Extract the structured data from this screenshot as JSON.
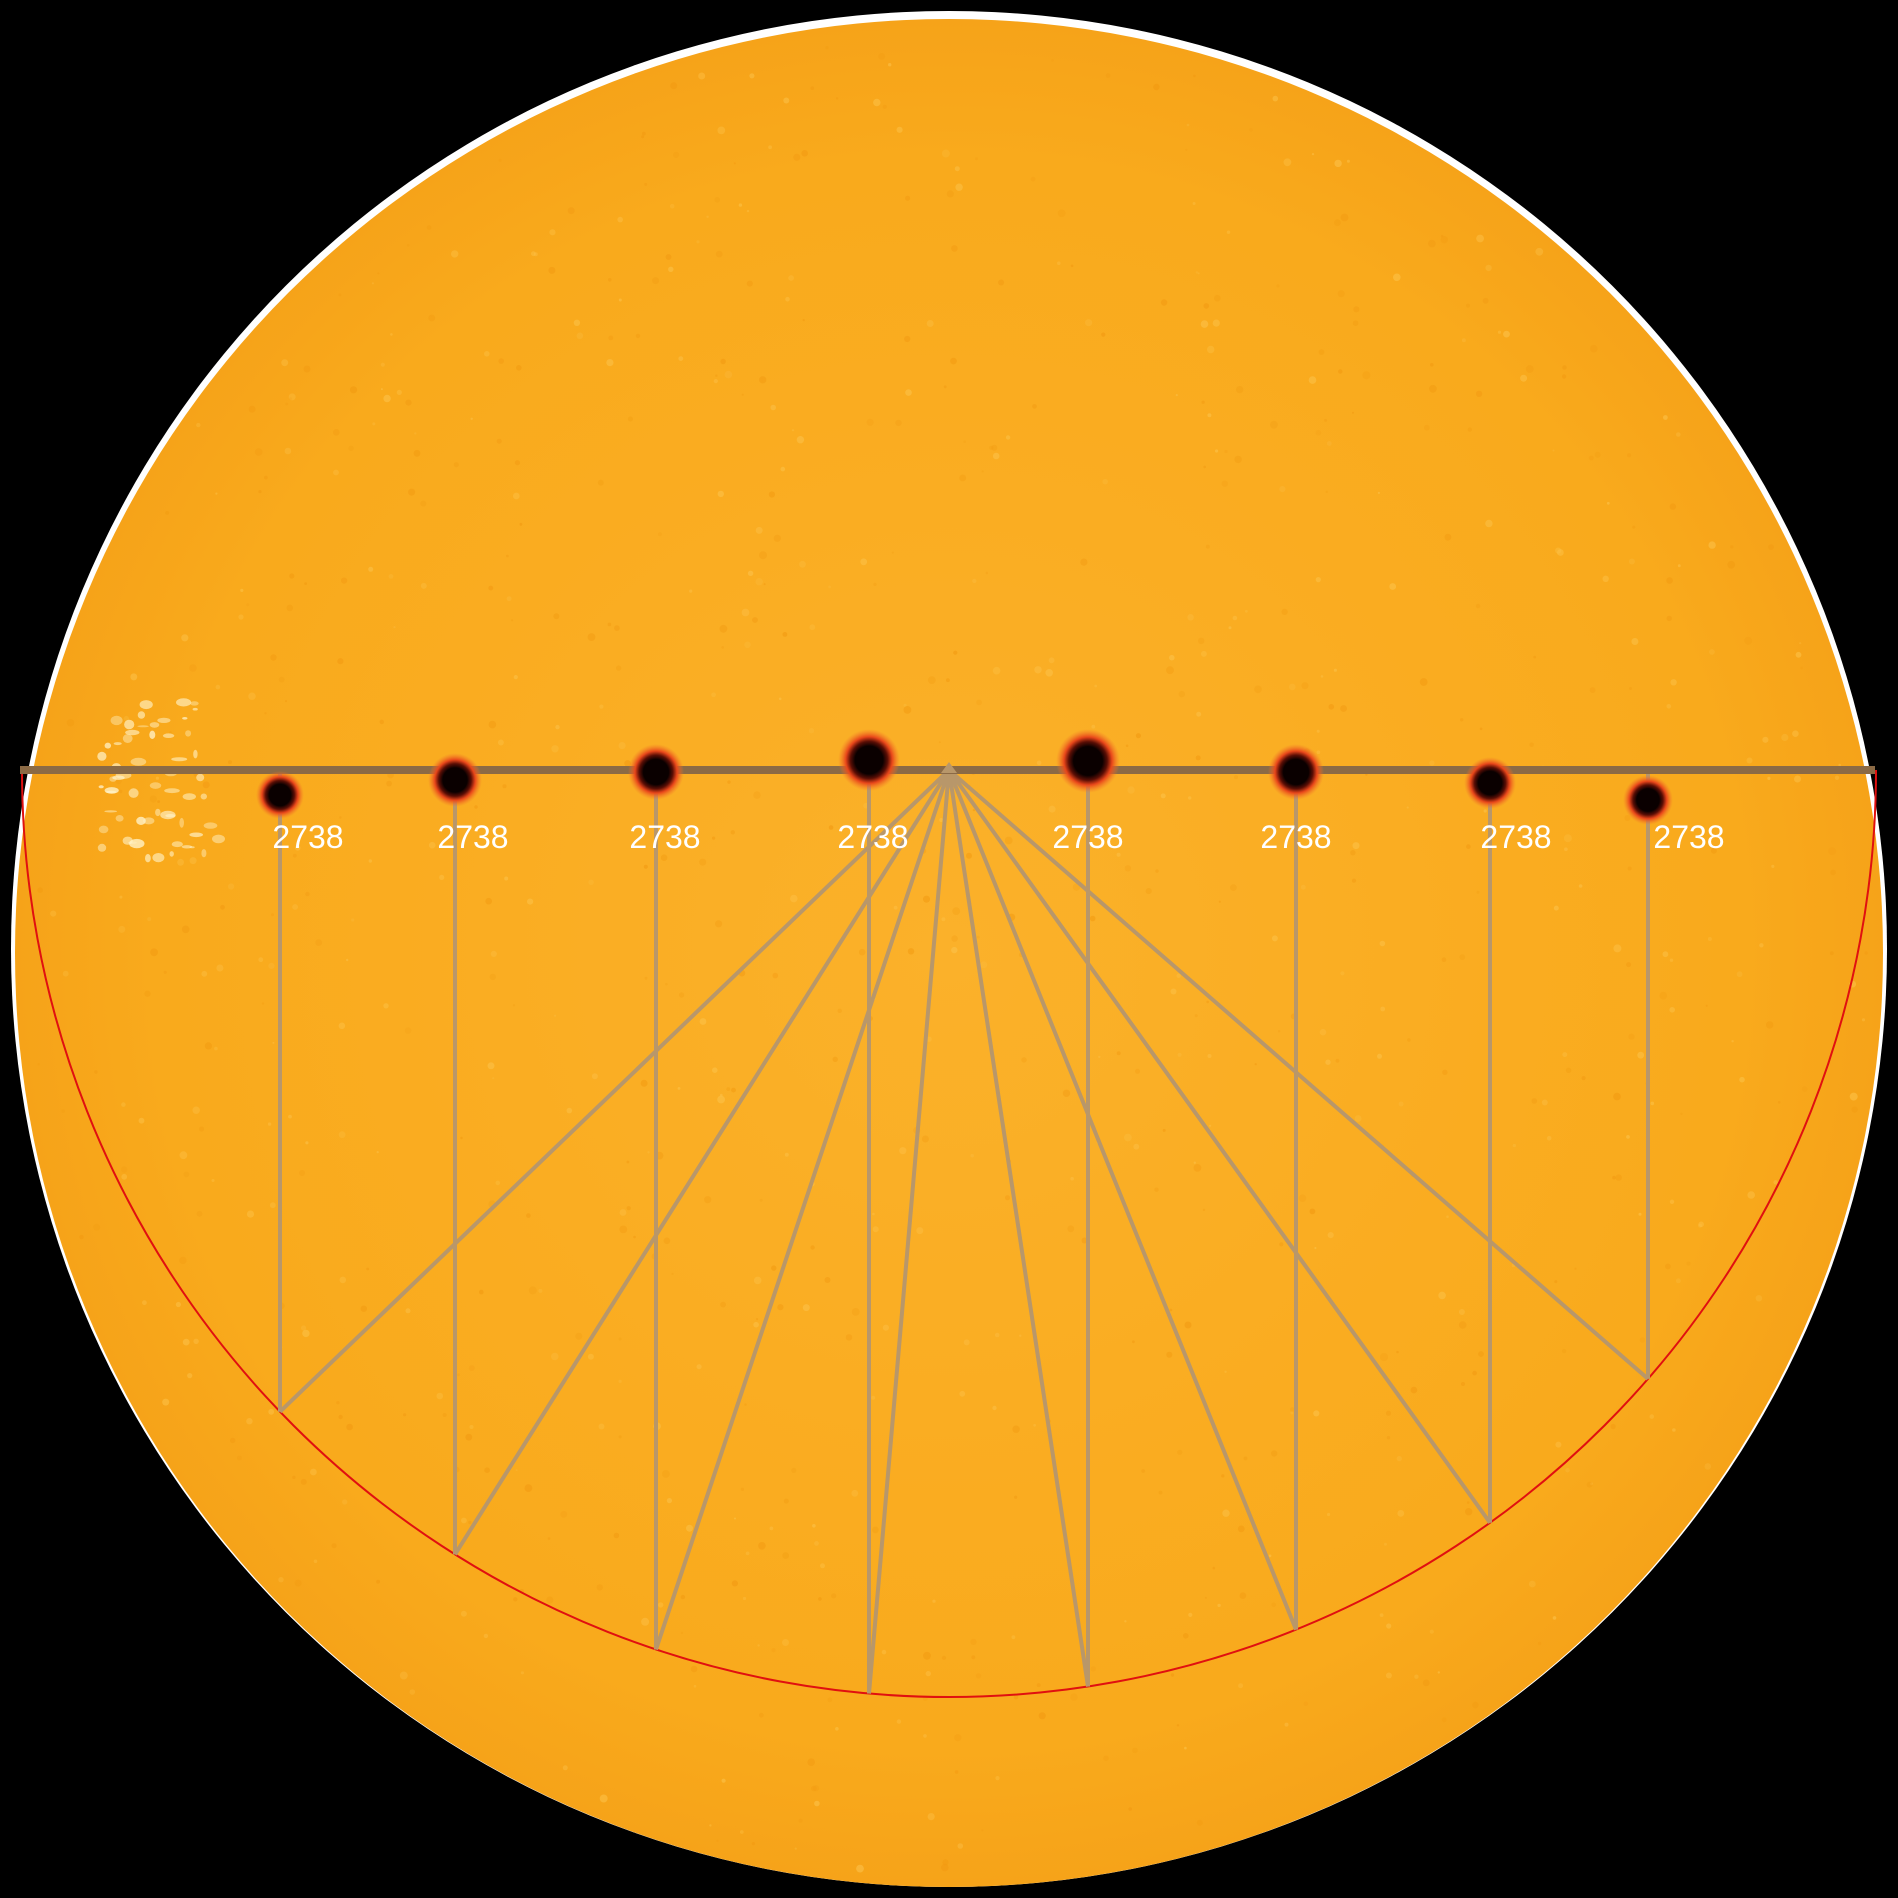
{
  "colors": {
    "background": "#000000",
    "disk": "#f9aa1c",
    "disk_light": "#fdc84e",
    "disk_rim": "#ffffff",
    "umbra": "#0a0000",
    "penumbra": "#e8461a",
    "track_line": "#8b6a45",
    "construction_line": "#b8976a",
    "projection_arc": "#e01010",
    "label": "#ffffff"
  },
  "sunspot_track": {
    "region_number": "2738",
    "positions": [
      {
        "label": "2738"
      },
      {
        "label": "2738"
      },
      {
        "label": "2738"
      },
      {
        "label": "2738"
      },
      {
        "label": "2738"
      },
      {
        "label": "2738"
      },
      {
        "label": "2738"
      },
      {
        "label": "2738"
      }
    ]
  }
}
